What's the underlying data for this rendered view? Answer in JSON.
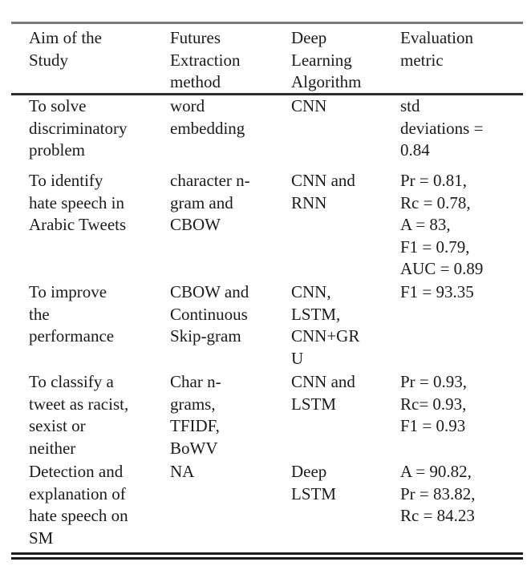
{
  "table": {
    "headers": [
      "Aim of the\nStudy",
      "Futures\nExtraction\nmethod",
      "Deep\nLearning\nAlgorithm",
      "Evaluation\nmetric"
    ],
    "rows": [
      [
        "To solve\ndiscriminatory\nproblem",
        "word\nembedding",
        "CNN",
        "std\ndeviations =\n0.84"
      ],
      [
        "To identify\nhate speech in\nArabic Tweets",
        "character n-\ngram and\nCBOW",
        "CNN and\nRNN",
        "Pr = 0.81,\n Rc = 0.78,\nA = 83,\nF1 = 0.79,\nAUC = 0.89"
      ],
      [
        "To improve\nthe\nperformance",
        "CBOW and\nContinuous\nSkip-gram",
        "CNN,\nLSTM,\nCNN+GR\nU",
        "F1 = 93.35"
      ],
      [
        "To classify a\ntweet as racist,\nsexist or\nneither",
        "Char n-\ngrams,\nTFIDF,\nBoWV",
        "CNN and\nLSTM",
        "Pr = 0.93,\nRc= 0.93,\nF1 = 0.93"
      ],
      [
        "Detection and\nexplanation of\nhate speech on\nSM",
        "NA",
        "Deep\nLSTM",
        "A = 90.82,\nPr = 83.82,\nRc = 84.23"
      ]
    ]
  }
}
